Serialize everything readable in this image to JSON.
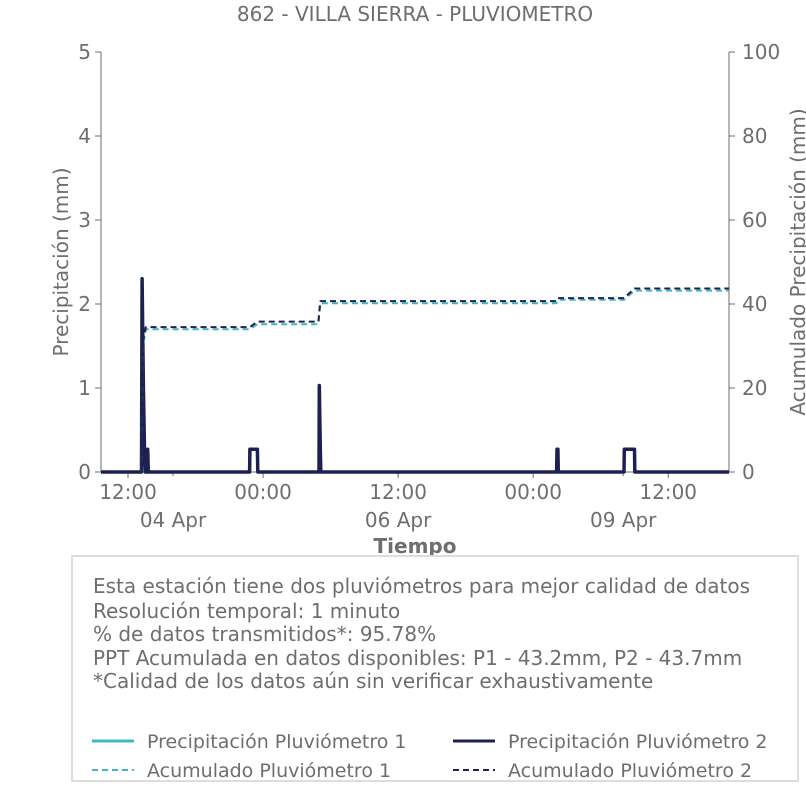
{
  "chart_data": {
    "type": "line",
    "title": "862 - VILLA SIERRA - PLUVIOMETRO",
    "xlabel": "Tiempo",
    "ylabel": "Precipitación (mm)",
    "y2label": "Acumulado Precipitación (mm)",
    "xlim": [
      "04 Apr 09:36",
      "06 Apr 17:24"
    ],
    "ylim": [
      0,
      5
    ],
    "y2lim": [
      0,
      100
    ],
    "yticks": [
      0,
      1,
      2,
      3,
      4,
      5
    ],
    "y2ticks": [
      0,
      20,
      40,
      60,
      80,
      100
    ],
    "xticks": [
      {
        "at": "04 Apr 12:00",
        "label": "12:00"
      },
      {
        "at": "05 Apr 00:00",
        "label": "00:00"
      },
      {
        "at": "05 Apr 12:00",
        "label": "12:00"
      },
      {
        "at": "06 Apr 00:00",
        "label": "00:00"
      },
      {
        "at": "06 Apr 12:00",
        "label": "12:00"
      }
    ],
    "date_labels": [
      {
        "at": "04 Apr 16:00",
        "label": "04 Apr"
      },
      {
        "at": "05 Apr 12:00",
        "label": "06 Apr"
      },
      {
        "at": "06 Apr 08:00",
        "label": "09 Apr"
      }
    ],
    "grid": false,
    "series": [
      {
        "name": "Precipitación Pluviómetro 1",
        "axis": "left",
        "style": "solid",
        "color": "#41b6c4",
        "points": [
          [
            "04 Apr 09:36",
            0
          ],
          [
            "04 Apr 13:12",
            0
          ],
          [
            "04 Apr 13:15",
            2.2
          ],
          [
            "04 Apr 13:22",
            1.0
          ],
          [
            "04 Apr 13:28",
            0.27
          ],
          [
            "04 Apr 13:32",
            0
          ],
          [
            "04 Apr 13:43",
            0
          ],
          [
            "04 Apr 13:45",
            0.27
          ],
          [
            "04 Apr 13:48",
            0
          ],
          [
            "04 Apr 22:48",
            0
          ],
          [
            "04 Apr 22:50",
            0.27
          ],
          [
            "04 Apr 23:30",
            0.27
          ],
          [
            "04 Apr 23:32",
            0
          ],
          [
            "05 Apr 04:58",
            0
          ],
          [
            "05 Apr 05:00",
            1.0
          ],
          [
            "05 Apr 05:05",
            0.27
          ],
          [
            "05 Apr 05:08",
            0
          ],
          [
            "06 Apr 02:05",
            0
          ],
          [
            "06 Apr 02:07",
            0.27
          ],
          [
            "06 Apr 02:12",
            0.27
          ],
          [
            "06 Apr 02:14",
            0
          ],
          [
            "06 Apr 08:04",
            0
          ],
          [
            "06 Apr 08:06",
            0.27
          ],
          [
            "06 Apr 09:00",
            0.27
          ],
          [
            "06 Apr 09:02",
            0
          ],
          [
            "06 Apr 17:24",
            0
          ]
        ]
      },
      {
        "name": "Precipitación Pluviómetro 2",
        "axis": "left",
        "style": "solid",
        "color": "#1d2150",
        "points": [
          [
            "04 Apr 09:36",
            0
          ],
          [
            "04 Apr 13:12",
            0
          ],
          [
            "04 Apr 13:15",
            2.3
          ],
          [
            "04 Apr 13:22",
            1.0
          ],
          [
            "04 Apr 13:28",
            0.27
          ],
          [
            "04 Apr 13:32",
            0
          ],
          [
            "04 Apr 13:43",
            0
          ],
          [
            "04 Apr 13:45",
            0.27
          ],
          [
            "04 Apr 13:48",
            0
          ],
          [
            "04 Apr 22:48",
            0
          ],
          [
            "04 Apr 22:50",
            0.27
          ],
          [
            "04 Apr 23:30",
            0.27
          ],
          [
            "04 Apr 23:32",
            0
          ],
          [
            "05 Apr 04:58",
            0
          ],
          [
            "05 Apr 05:00",
            1.03
          ],
          [
            "05 Apr 05:05",
            0.27
          ],
          [
            "05 Apr 05:08",
            0
          ],
          [
            "06 Apr 02:05",
            0
          ],
          [
            "06 Apr 02:07",
            0.27
          ],
          [
            "06 Apr 02:12",
            0.27
          ],
          [
            "06 Apr 02:14",
            0
          ],
          [
            "06 Apr 08:04",
            0
          ],
          [
            "06 Apr 08:06",
            0.27
          ],
          [
            "06 Apr 09:00",
            0.27
          ],
          [
            "06 Apr 09:02",
            0
          ],
          [
            "06 Apr 17:24",
            0
          ]
        ]
      },
      {
        "name": "Acumulado Pluviómetro 1",
        "axis": "right",
        "style": "dashed",
        "color": "#41b6c4",
        "points": [
          [
            "04 Apr 09:36",
            0
          ],
          [
            "04 Apr 13:10",
            0
          ],
          [
            "04 Apr 13:20",
            30
          ],
          [
            "04 Apr 13:35",
            34.0
          ],
          [
            "04 Apr 22:50",
            34.0
          ],
          [
            "04 Apr 23:30",
            35.2
          ],
          [
            "05 Apr 04:55",
            35.2
          ],
          [
            "05 Apr 05:05",
            40.2
          ],
          [
            "06 Apr 02:05",
            40.2
          ],
          [
            "06 Apr 02:12",
            41.0
          ],
          [
            "06 Apr 08:05",
            41.0
          ],
          [
            "06 Apr 09:00",
            43.2
          ],
          [
            "06 Apr 17:24",
            43.2
          ]
        ]
      },
      {
        "name": "Acumulado Pluviómetro 2",
        "axis": "right",
        "style": "dashed",
        "color": "#1d2150",
        "points": [
          [
            "04 Apr 09:36",
            0
          ],
          [
            "04 Apr 13:10",
            0
          ],
          [
            "04 Apr 13:20",
            31
          ],
          [
            "04 Apr 13:35",
            34.5
          ],
          [
            "04 Apr 22:50",
            34.5
          ],
          [
            "04 Apr 23:30",
            35.8
          ],
          [
            "05 Apr 04:55",
            35.8
          ],
          [
            "05 Apr 05:05",
            40.7
          ],
          [
            "06 Apr 02:05",
            40.7
          ],
          [
            "06 Apr 02:12",
            41.4
          ],
          [
            "06 Apr 08:05",
            41.4
          ],
          [
            "06 Apr 09:00",
            43.7
          ],
          [
            "06 Apr 17:24",
            43.7
          ]
        ]
      }
    ]
  },
  "info": {
    "lines": [
      "Esta estación tiene dos pluviómetros para mejor calidad de datos",
      "Resolución temporal: 1 minuto",
      "% de datos transmitidos*: 95.78%",
      "PPT Acumulada en datos disponibles: P1 - 43.2mm, P2 - 43.7mm",
      "*Calidad de los datos aún sin verificar exhaustivamente"
    ]
  },
  "legend": {
    "placement": "bottom",
    "items": [
      {
        "label": "Precipitación Pluviómetro 1",
        "color": "#41b6c4",
        "style": "solid"
      },
      {
        "label": "Precipitación Pluviómetro 2",
        "color": "#1d2150",
        "style": "solid"
      },
      {
        "label": "Acumulado Pluviómetro 1",
        "color": "#41b6c4",
        "style": "dashed"
      },
      {
        "label": "Acumulado Pluviómetro 2",
        "color": "#1d2150",
        "style": "dashed"
      }
    ]
  }
}
